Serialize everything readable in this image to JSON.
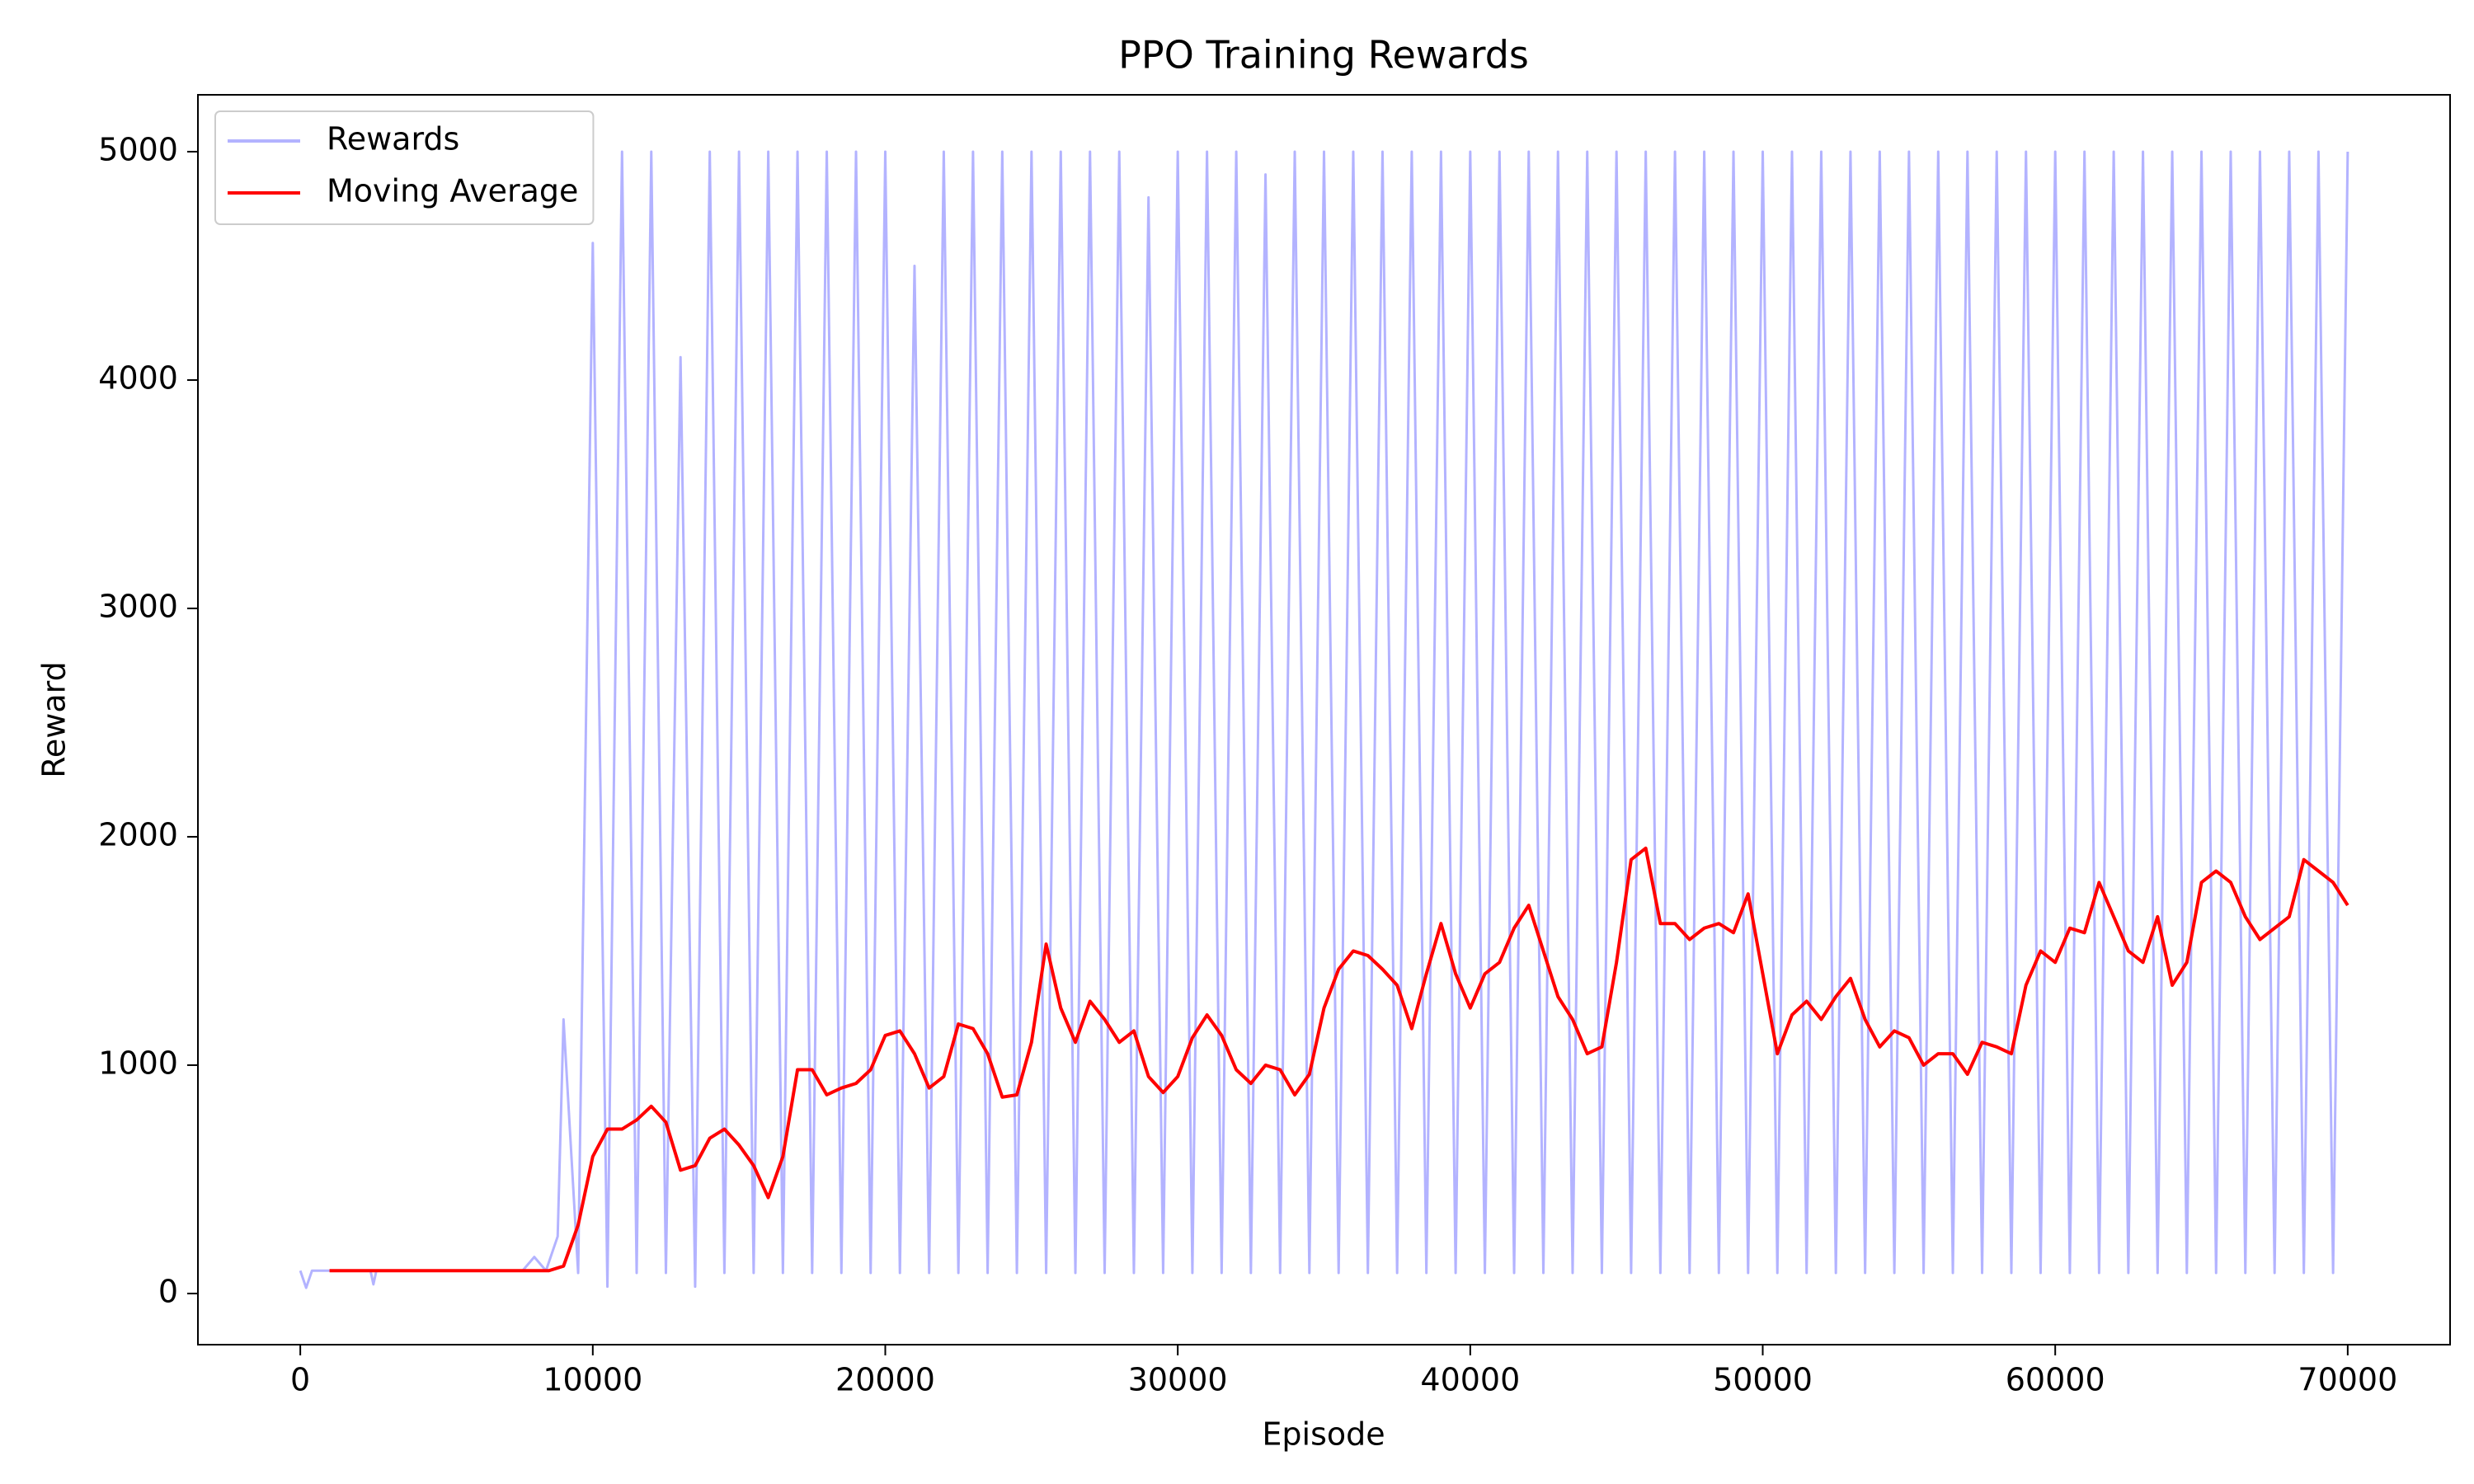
{
  "chart_data": {
    "type": "line",
    "title": "PPO Training Rewards",
    "x_label": "Episode",
    "y_label": "Reward",
    "xlim": [
      -3500,
      73500
    ],
    "ylim": [
      -224,
      5249
    ],
    "xticks": [
      0,
      10000,
      20000,
      30000,
      40000,
      50000,
      60000,
      70000
    ],
    "yticks": [
      0,
      1000,
      2000,
      3000,
      4000,
      5000
    ],
    "grid": false,
    "legend": "upper left",
    "series": [
      {
        "name": "Rewards",
        "color": "#b3b3ff",
        "x": [
          0,
          200,
          400,
          2400,
          2500,
          2600,
          7600,
          8000,
          8400,
          8800,
          9000,
          9500,
          10000,
          10500,
          11000,
          11500,
          12000,
          12500,
          13000,
          13500,
          14000,
          14500,
          15000,
          15500,
          16000,
          16500,
          17000,
          17500,
          18000,
          18500,
          19000,
          19500,
          20000,
          20500,
          21000,
          21500,
          22000,
          22500,
          23000,
          23500,
          24000,
          24500,
          25000,
          25500,
          26000,
          26500,
          27000,
          27500,
          28000,
          28500,
          29000,
          29500,
          30000,
          30500,
          31000,
          31500,
          32000,
          32500,
          33000,
          33500,
          34000,
          34500,
          35000,
          35500,
          36000,
          36500,
          37000,
          37500,
          38000,
          38500,
          39000,
          39500,
          40000,
          40500,
          41000,
          41500,
          42000,
          42500,
          43000,
          43500,
          44000,
          44500,
          45000,
          45500,
          46000,
          46500,
          47000,
          47500,
          48000,
          48500,
          49000,
          49500,
          50000,
          50500,
          51000,
          51500,
          52000,
          52500,
          53000,
          53500,
          54000,
          54500,
          55000,
          55500,
          56000,
          56500,
          57000,
          57500,
          58000,
          58500,
          59000,
          59500,
          60000,
          60500,
          61000,
          61500,
          62000,
          62500,
          63000,
          63500,
          64000,
          64500,
          65000,
          65500,
          66000,
          66500,
          67000,
          67500,
          68000,
          68500,
          69000,
          69500,
          70000
        ],
        "values": [
          100,
          25,
          100,
          100,
          40,
          100,
          100,
          160,
          100,
          250,
          1200,
          90,
          4600,
          30,
          5000,
          90,
          5000,
          90,
          4100,
          30,
          5000,
          90,
          5000,
          90,
          5000,
          90,
          5000,
          90,
          5000,
          90,
          5000,
          90,
          5000,
          90,
          4500,
          90,
          5000,
          90,
          5000,
          90,
          5000,
          90,
          5000,
          90,
          5000,
          90,
          5000,
          90,
          5000,
          90,
          4800,
          90,
          5000,
          90,
          5000,
          90,
          5000,
          90,
          4900,
          90,
          5000,
          90,
          5000,
          90,
          5000,
          90,
          5000,
          90,
          5000,
          90,
          5000,
          90,
          5000,
          90,
          5000,
          90,
          5000,
          90,
          5000,
          90,
          5000,
          90,
          5000,
          90,
          5000,
          90,
          5000,
          90,
          5000,
          90,
          5000,
          90,
          5000,
          90,
          5000,
          90,
          5000,
          90,
          5000,
          90,
          5000,
          90,
          5000,
          90,
          5000,
          90,
          5000,
          90,
          5000,
          90,
          5000,
          90,
          5000,
          90,
          5000,
          90,
          5000,
          90,
          5000,
          90,
          5000,
          90,
          5000,
          90,
          5000,
          90,
          5000,
          90,
          5000,
          90,
          5000,
          90,
          5000
        ]
      },
      {
        "name": "Moving Average",
        "color": "#ff0000",
        "x": [
          1000,
          8500,
          9000,
          9500,
          10000,
          10500,
          11000,
          11500,
          12000,
          12500,
          13000,
          13500,
          14000,
          14500,
          15000,
          15500,
          16000,
          16500,
          17000,
          17500,
          18000,
          18500,
          19000,
          19500,
          20000,
          20500,
          21000,
          21500,
          22000,
          22500,
          23000,
          23500,
          24000,
          24500,
          25000,
          25500,
          26000,
          26500,
          27000,
          27500,
          28000,
          28500,
          29000,
          29500,
          30000,
          30500,
          31000,
          31500,
          32000,
          32500,
          33000,
          33500,
          34000,
          34500,
          35000,
          35500,
          36000,
          36500,
          37000,
          37500,
          38000,
          38500,
          39000,
          39500,
          40000,
          40500,
          41000,
          41500,
          42000,
          42500,
          43000,
          43500,
          44000,
          44500,
          45000,
          45500,
          46000,
          46500,
          47000,
          47500,
          48000,
          48500,
          49000,
          49500,
          50000,
          50500,
          51000,
          51500,
          52000,
          52500,
          53000,
          53500,
          54000,
          54500,
          55000,
          55500,
          56000,
          56500,
          57000,
          57500,
          58000,
          58500,
          59000,
          59500,
          60000,
          60500,
          61000,
          61500,
          62000,
          62500,
          63000,
          63500,
          64000,
          64500,
          65000,
          65500,
          66000,
          66500,
          67000,
          67500,
          68000,
          68500,
          69000,
          69500,
          70000
        ],
        "values": [
          100,
          100,
          120,
          300,
          600,
          720,
          720,
          760,
          820,
          750,
          540,
          560,
          680,
          720,
          650,
          560,
          420,
          600,
          980,
          980,
          870,
          900,
          920,
          980,
          1130,
          1150,
          1050,
          900,
          950,
          1180,
          1160,
          1050,
          860,
          870,
          1100,
          1530,
          1250,
          1100,
          1280,
          1200,
          1100,
          1150,
          950,
          880,
          950,
          1120,
          1220,
          1130,
          980,
          920,
          1000,
          980,
          870,
          960,
          1250,
          1420,
          1500,
          1480,
          1420,
          1350,
          1160,
          1400,
          1620,
          1400,
          1250,
          1400,
          1450,
          1600,
          1700,
          1500,
          1300,
          1200,
          1050,
          1080,
          1450,
          1900,
          1950,
          1620,
          1620,
          1550,
          1600,
          1620,
          1580,
          1750,
          1400,
          1050,
          1220,
          1280,
          1200,
          1300,
          1380,
          1200,
          1080,
          1150,
          1120,
          1000,
          1050,
          1050,
          960,
          1100,
          1080,
          1050,
          1350,
          1500,
          1450,
          1600,
          1580,
          1800,
          1650,
          1500,
          1450,
          1650,
          1350,
          1450,
          1800,
          1850,
          1800,
          1650,
          1550,
          1600,
          1650,
          1900,
          1850,
          1800,
          1700
        ]
      }
    ]
  }
}
